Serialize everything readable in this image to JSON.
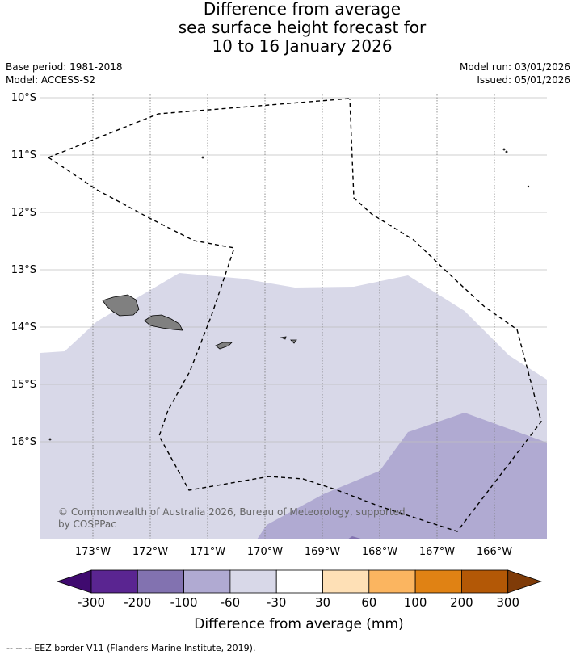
{
  "title": {
    "line1": "Difference from average",
    "line2": "sea surface height forecast for",
    "line3": "10 to 16 January 2026"
  },
  "info": {
    "base_period": "Base period: 1981-2018",
    "model": "Model: ACCESS-S2",
    "model_run": "Model run: 03/01/2026",
    "issued": "Issued: 05/01/2026"
  },
  "map": {
    "lat_labels": [
      "10°S",
      "11°S",
      "12°S",
      "13°S",
      "14°S",
      "15°S",
      "16°S"
    ],
    "lon_labels": [
      "173°W",
      "172°W",
      "171°W",
      "170°W",
      "169°W",
      "168°W",
      "167°W",
      "166°W"
    ],
    "copyright_line1": "© Commonwealth of Australia 2026, Bureau of Meteorology, supported",
    "copyright_line2": "by COSPPac",
    "shading_colors": {
      "-60 to -30": "#d8d8e8",
      "-100 to -60": "#b0aad2",
      "-200 to -100": "#8272b0"
    },
    "land_color": "#808080"
  },
  "legend": {
    "ticks": [
      "-300",
      "-200",
      "-100",
      "-60",
      "-30",
      "30",
      "60",
      "100",
      "200",
      "300"
    ],
    "colors": [
      "#3f0a6f",
      "#5a2591",
      "#8272b0",
      "#b0aad2",
      "#d8d8e8",
      "#ffffff",
      "#fee0b6",
      "#fbb560",
      "#e08214",
      "#b35806",
      "#7f3b08"
    ],
    "label": "Difference from average (mm)"
  },
  "footnote": "--  --  -- EEZ border V11 (Flanders Marine Institute, 2019)."
}
